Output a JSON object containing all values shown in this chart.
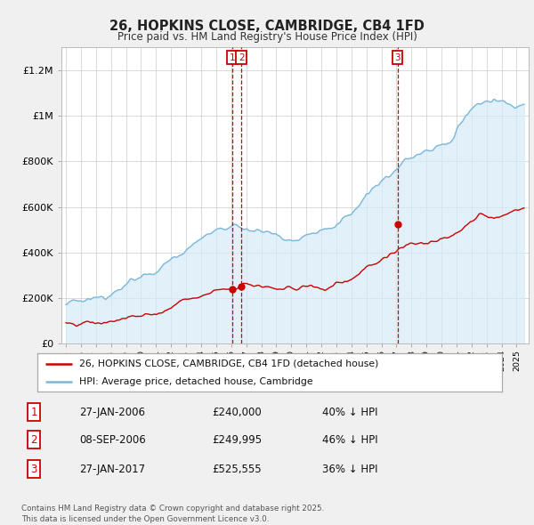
{
  "title": "26, HOPKINS CLOSE, CAMBRIDGE, CB4 1FD",
  "subtitle": "Price paid vs. HM Land Registry's House Price Index (HPI)",
  "background_color": "#f0f0f0",
  "plot_bg_color": "#ffffff",
  "ylim": [
    0,
    1300000
  ],
  "yticks": [
    0,
    200000,
    400000,
    600000,
    800000,
    1000000,
    1200000
  ],
  "ytick_labels": [
    "£0",
    "£200K",
    "£400K",
    "£600K",
    "£800K",
    "£1M",
    "£1.2M"
  ],
  "transactions": [
    {
      "label": "1",
      "date_num": 2006.07,
      "price": 240000
    },
    {
      "label": "2",
      "date_num": 2006.67,
      "price": 249995
    },
    {
      "label": "3",
      "date_num": 2017.07,
      "price": 525555
    }
  ],
  "legend_entries": [
    "26, HOPKINS CLOSE, CAMBRIDGE, CB4 1FD (detached house)",
    "HPI: Average price, detached house, Cambridge"
  ],
  "footer": "Contains HM Land Registry data © Crown copyright and database right 2025.\nThis data is licensed under the Open Government Licence v3.0.",
  "table_rows": [
    [
      "1",
      "27-JAN-2006",
      "£240,000",
      "40% ↓ HPI"
    ],
    [
      "2",
      "08-SEP-2006",
      "£249,995",
      "46% ↓ HPI"
    ],
    [
      "3",
      "27-JAN-2017",
      "£525,555",
      "36% ↓ HPI"
    ]
  ],
  "hpi_line_color": "#7ab8d9",
  "hpi_fill_color": "#d6eaf8",
  "price_line_color": "#cc0000",
  "vline_color": "#cc0000",
  "grid_color": "#cccccc",
  "xmin": 1994.7,
  "xmax": 2025.8
}
